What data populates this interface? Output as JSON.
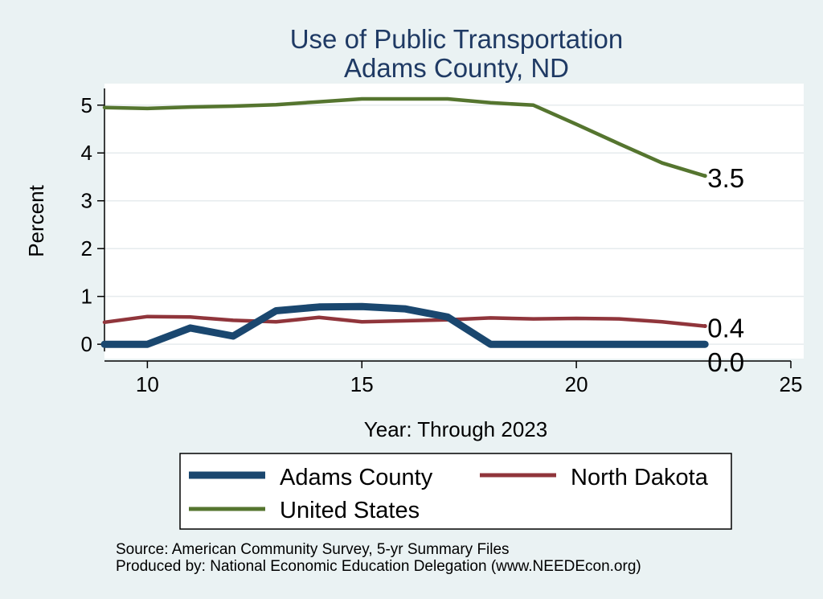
{
  "chart_data": {
    "type": "line",
    "title": [
      "Use of Public Transportation",
      "Adams County, ND"
    ],
    "xlabel": "Year: Through 2023",
    "ylabel": "Percent",
    "xlim": [
      9,
      25.3
    ],
    "ylim": [
      -0.3,
      5.45
    ],
    "xticks": [
      10,
      15,
      20,
      25
    ],
    "yticks": [
      0,
      1,
      2,
      3,
      4,
      5
    ],
    "grid": "horizontal",
    "series": [
      {
        "name": "Adams County",
        "color": "#1a476f",
        "x": [
          9,
          10,
          11,
          12,
          13,
          14,
          15,
          16,
          17,
          18,
          19,
          20,
          21,
          22,
          23
        ],
        "values": [
          0.0,
          0.0,
          0.34,
          0.17,
          0.7,
          0.78,
          0.79,
          0.74,
          0.57,
          0.0,
          0.0,
          0.0,
          0.0,
          0.0,
          0.0
        ],
        "end_label": "0.0"
      },
      {
        "name": "North Dakota",
        "color": "#90353b",
        "x": [
          9,
          10,
          11,
          12,
          13,
          14,
          15,
          16,
          17,
          18,
          19,
          20,
          21,
          22,
          23
        ],
        "values": [
          0.46,
          0.58,
          0.57,
          0.5,
          0.47,
          0.56,
          0.47,
          0.49,
          0.51,
          0.55,
          0.53,
          0.54,
          0.53,
          0.47,
          0.38
        ],
        "end_label": "0.4"
      },
      {
        "name": "United States",
        "color": "#55752f",
        "x": [
          9,
          10,
          11,
          12,
          13,
          14,
          15,
          16,
          17,
          18,
          19,
          20,
          21,
          22,
          23
        ],
        "values": [
          4.95,
          4.93,
          4.96,
          4.98,
          5.01,
          5.07,
          5.13,
          5.13,
          5.13,
          5.05,
          5.0,
          4.6,
          4.19,
          3.79,
          3.52
        ],
        "end_label": "3.5"
      }
    ],
    "legend": {
      "placement": "bottom",
      "entries": [
        "Adams County",
        "North Dakota",
        "United States"
      ]
    },
    "notes": [
      "Source: American Community Survey, 5-yr Summary Files",
      "Produced by: National Economic Education Delegation (www.NEEDEcon.org)"
    ]
  }
}
